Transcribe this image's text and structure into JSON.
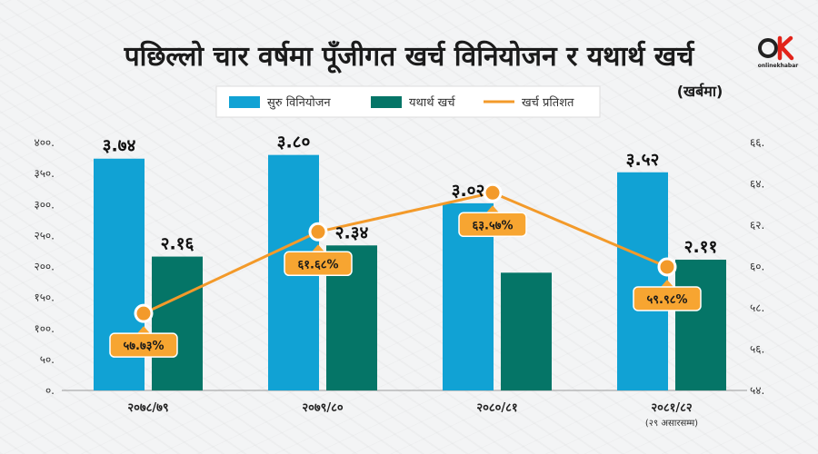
{
  "header": {
    "title": "पछिल्लो चार वर्षमा पूँजीगत खर्च विनियोजन र यथार्थ खर्च",
    "unit": "(खर्बमा)"
  },
  "logo": {
    "text": "onlinekhabar",
    "accent": "#e2231a"
  },
  "colors": {
    "allocation": "#11a2d4",
    "actual": "#057567",
    "percent_line": "#f39a2a",
    "label_box": "#f7a531"
  },
  "chart_data": {
    "type": "bar",
    "title": "पछिल्लो चार वर्षमा पूँजीगत खर्च विनियोजन र यथार्थ खर्च",
    "subtitle": "(खर्बमा)",
    "categories": [
      "२०७८/७९",
      "२०७९/८०",
      "२०८०/८१",
      "२०८१/८२"
    ],
    "category_notes": [
      "",
      "",
      "",
      "(२९ असारसम्म)"
    ],
    "series": [
      {
        "name": "सुरु विनियोजन",
        "type": "bar",
        "axis": "left",
        "values": [
          374,
          380,
          302,
          352
        ],
        "labels": [
          "३.७४",
          "३.८०",
          "३.०२",
          "३.५२"
        ]
      },
      {
        "name": "यथार्थ खर्च",
        "type": "bar",
        "axis": "left",
        "values": [
          216,
          234,
          190,
          211
        ],
        "labels": [
          "२.१६",
          "२.३४",
          "",
          "२.११"
        ]
      },
      {
        "name": "खर्च प्रतिशत",
        "type": "line",
        "axis": "right",
        "values": [
          57.73,
          61.68,
          63.57,
          59.98
        ],
        "labels": [
          "५७.७३%",
          "६१.६८%",
          "६३.५७%",
          "५९.९८%"
        ]
      }
    ],
    "ylim": [
      0,
      400
    ],
    "yticks": [
      "०.",
      "५०.",
      "१००.",
      "१५०.",
      "२००.",
      "२५०.",
      "३००.",
      "३५०.",
      "४००."
    ],
    "y2lim": [
      54,
      66
    ],
    "y2ticks": [
      "५४.",
      "५६.",
      "५८.",
      "६०.",
      "६२.",
      "६४.",
      "६६."
    ],
    "legend_position": "top",
    "grid": false
  }
}
